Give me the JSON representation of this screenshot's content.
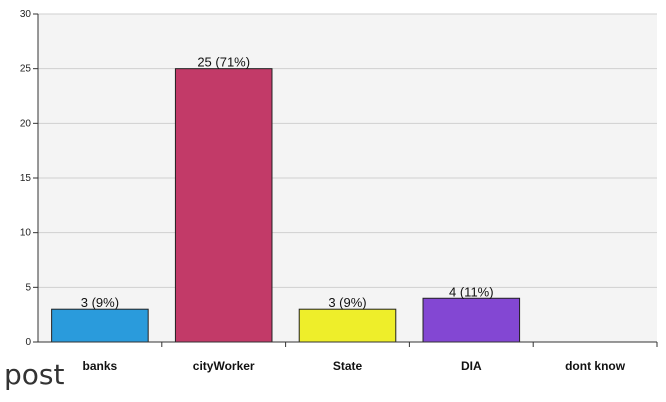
{
  "chart_data": {
    "type": "bar",
    "categories": [
      "banks",
      "cityWorker",
      "State",
      "DIA",
      "dont know"
    ],
    "values": [
      3,
      25,
      3,
      4,
      0
    ],
    "data_labels": [
      "3 (9%)",
      "25 (71%)",
      "3 (9%)",
      "4 (11%)",
      ""
    ],
    "colors": [
      "#2a9bdc",
      "#c23a68",
      "#eeee2a",
      "#8347d3",
      "#888888"
    ],
    "ylim": [
      0,
      30
    ],
    "yticks": [
      0,
      5,
      10,
      15,
      20,
      25,
      30
    ],
    "grid": true,
    "plot_background": "#f4f4f4",
    "title": "",
    "xlabel": "",
    "ylabel": ""
  },
  "footer": {
    "text": "post"
  }
}
